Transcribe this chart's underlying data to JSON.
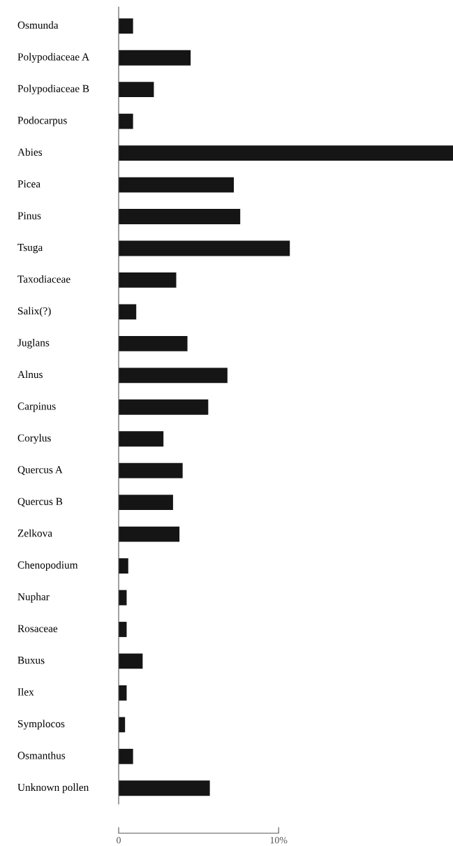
{
  "chart_data": {
    "type": "bar",
    "orientation": "horizontal",
    "color": "#151515",
    "categories": [
      "Osmunda",
      "Polypodiaceae A",
      "Polypodiaceae B",
      "Podocarpus",
      "Abies",
      "Picea",
      "Pinus",
      "Tsuga",
      "Taxodiaceae",
      "Salix(?)",
      "Juglans",
      "Alnus",
      "Carpinus",
      "Corylus",
      "Quercus A",
      "Quercus B",
      "Zelkova",
      "Chenopodium",
      "Nuphar",
      "Rosaceae",
      "Buxus",
      "Ilex",
      "Symplocos",
      "Osmanthus",
      "Unknown pollen"
    ],
    "values": [
      0.9,
      4.5,
      2.2,
      0.9,
      20.9,
      7.2,
      7.6,
      10.7,
      3.6,
      1.1,
      4.3,
      6.8,
      5.6,
      2.8,
      4.0,
      3.4,
      3.8,
      0.6,
      0.5,
      0.5,
      1.5,
      0.5,
      0.4,
      0.9,
      5.7
    ],
    "xlim": [
      0,
      20.9
    ],
    "xticks": [
      0,
      {
        "value": 10,
        "label": "10%"
      }
    ],
    "grid": false
  }
}
